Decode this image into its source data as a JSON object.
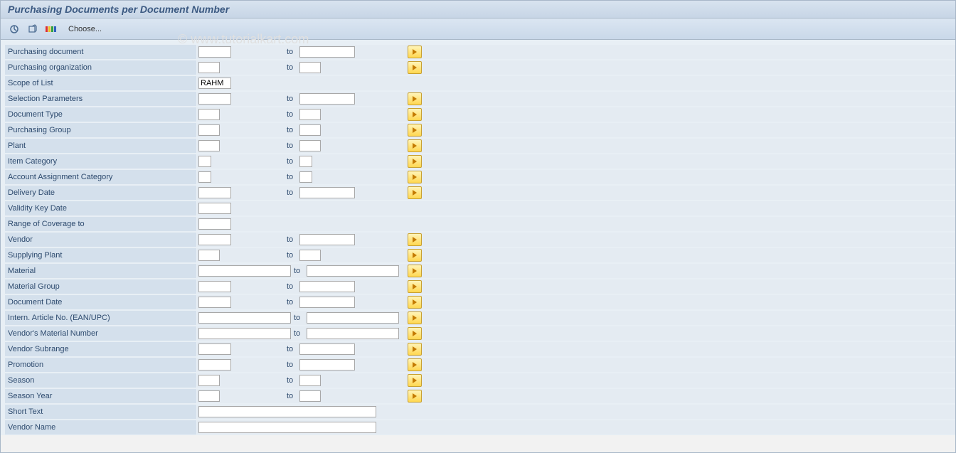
{
  "title": "Purchasing Documents per Document Number",
  "toolbar": {
    "choose_label": "Choose..."
  },
  "watermark": "© www.tutorialkart.com",
  "to_label": "to",
  "colors": {
    "header_bg_top": "#d8e3ef",
    "header_bg_bot": "#c7d5e6",
    "label_bg": "#d4e0ec",
    "field_bg": "#e4ebf2",
    "border": "#a8b7c8",
    "title_text": "#3c5a82",
    "more_btn_top": "#fff4b8",
    "more_btn_bot": "#ffd750",
    "more_btn_border": "#c8a030",
    "arrow": "#c47a00"
  },
  "rows": [
    {
      "id": "purchasing-document",
      "label": "Purchasing document",
      "from_w": "w-sm",
      "to_w": "w-md",
      "has_to": true,
      "has_more": true
    },
    {
      "id": "purchasing-organization",
      "label": "Purchasing organization",
      "from_w": "w-xs",
      "to_w": "w-xs",
      "has_to": true,
      "has_more": true
    },
    {
      "id": "scope-of-list",
      "label": "Scope of List",
      "from_w": "w-sm",
      "value": "RAHM",
      "has_to": false,
      "has_more": false
    },
    {
      "id": "selection-parameters",
      "label": "Selection Parameters",
      "from_w": "w-sm",
      "to_w": "w-md",
      "has_to": true,
      "has_more": true
    },
    {
      "id": "document-type",
      "label": "Document Type",
      "from_w": "w-xs",
      "to_w": "w-xs",
      "has_to": true,
      "has_more": true
    },
    {
      "id": "purchasing-group",
      "label": "Purchasing Group",
      "from_w": "w-xs",
      "to_w": "w-xs",
      "has_to": true,
      "has_more": true
    },
    {
      "id": "plant",
      "label": "Plant",
      "from_w": "w-xs",
      "to_w": "w-xs",
      "has_to": true,
      "has_more": true
    },
    {
      "id": "item-category",
      "label": "Item Category",
      "from_w": "w-tiny",
      "to_w": "w-tiny",
      "has_to": true,
      "has_more": true
    },
    {
      "id": "account-assignment-category",
      "label": "Account Assignment Category",
      "from_w": "w-tiny",
      "to_w": "w-tiny",
      "has_to": true,
      "has_more": true
    },
    {
      "id": "delivery-date",
      "label": "Delivery Date",
      "from_w": "w-sm",
      "to_w": "w-md",
      "has_to": true,
      "has_more": true
    },
    {
      "id": "validity-key-date",
      "label": "Validity Key Date",
      "from_w": "w-sm",
      "has_to": false,
      "has_more": false
    },
    {
      "id": "range-of-coverage-to",
      "label": "Range of Coverage to",
      "from_w": "w-sm",
      "has_to": false,
      "has_more": false
    },
    {
      "id": "vendor",
      "label": "Vendor",
      "from_w": "w-sm",
      "to_w": "w-md",
      "has_to": true,
      "has_more": true
    },
    {
      "id": "supplying-plant",
      "label": "Supplying Plant",
      "from_w": "w-xs",
      "to_w": "w-xs",
      "has_to": true,
      "has_more": true
    },
    {
      "id": "material",
      "label": "Material",
      "from_w": "w-lg",
      "to_w": "w-lg",
      "has_to": true,
      "has_more": true,
      "wide_to": true
    },
    {
      "id": "material-group",
      "label": "Material Group",
      "from_w": "w-sm",
      "to_w": "w-md",
      "has_to": true,
      "has_more": true
    },
    {
      "id": "document-date",
      "label": "Document Date",
      "from_w": "w-sm",
      "to_w": "w-md",
      "has_to": true,
      "has_more": true
    },
    {
      "id": "intern-article-no",
      "label": "Intern. Article No. (EAN/UPC)",
      "from_w": "w-lg",
      "to_w": "w-lg",
      "has_to": true,
      "has_more": true,
      "wide_to": true
    },
    {
      "id": "vendors-material-number",
      "label": "Vendor's Material Number",
      "from_w": "w-lg",
      "to_w": "w-lg",
      "has_to": true,
      "has_more": true,
      "wide_to": true
    },
    {
      "id": "vendor-subrange",
      "label": "Vendor Subrange",
      "from_w": "w-sm",
      "to_w": "w-md",
      "has_to": true,
      "has_more": true
    },
    {
      "id": "promotion",
      "label": "Promotion",
      "from_w": "w-sm",
      "to_w": "w-md",
      "has_to": true,
      "has_more": true
    },
    {
      "id": "season",
      "label": "Season",
      "from_w": "w-xs",
      "to_w": "w-xs",
      "has_to": true,
      "has_more": true
    },
    {
      "id": "season-year",
      "label": "Season Year",
      "from_w": "w-xs",
      "to_w": "w-xs",
      "has_to": true,
      "has_more": true
    },
    {
      "id": "short-text",
      "label": "Short Text",
      "from_w": "w-xl",
      "has_to": false,
      "has_more": false
    },
    {
      "id": "vendor-name",
      "label": "Vendor Name",
      "from_w": "w-xl",
      "has_to": false,
      "has_more": false
    }
  ]
}
